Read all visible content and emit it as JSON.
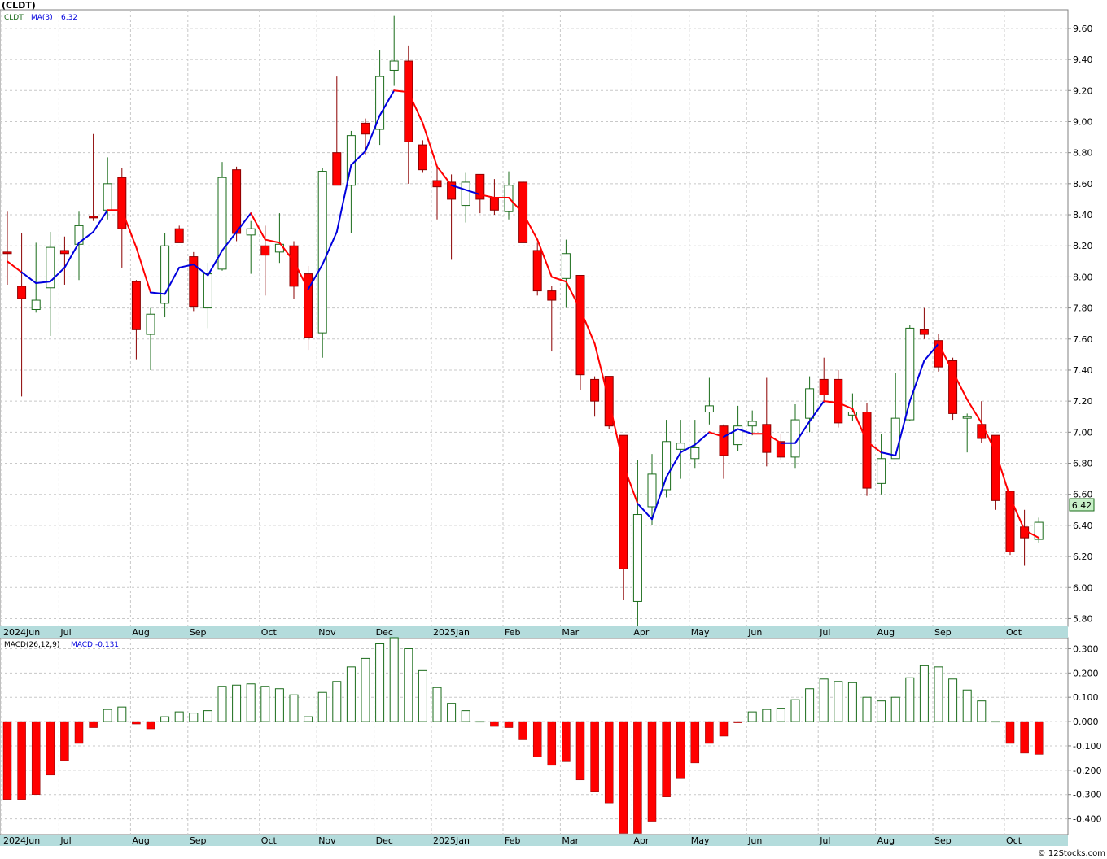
{
  "header": {
    "title": "(CLDT)"
  },
  "legend_main": {
    "symbol": "CLDT",
    "ma_label": "MA(3)",
    "ma_value": "6.32"
  },
  "legend_macd": {
    "label": "MACD(26,12,9)",
    "value_label": "MACD:-0.131"
  },
  "footer": {
    "copyright": "© 12Stocks.com"
  },
  "last_price_label": "6.42",
  "colors": {
    "up_candle": "#1a6b1a",
    "down_candle": "#ff0000",
    "ma_up": "#0000dd",
    "ma_down": "#ff0000",
    "axis_band": "#b4dcdc",
    "price_tag": "#c8f0c8"
  },
  "chart_data": [
    {
      "type": "candlestick",
      "title": "(CLDT)",
      "ylim": [
        5.75,
        9.72
      ],
      "yticks": [
        "9.60",
        "9.40",
        "9.20",
        "9.00",
        "8.80",
        "8.60",
        "8.40",
        "8.20",
        "8.00",
        "7.80",
        "7.60",
        "7.40",
        "7.20",
        "7.00",
        "6.80",
        "6.60",
        "6.40",
        "6.20",
        "6.00",
        "5.80"
      ],
      "x_tick_labels": [
        "2024Jun",
        "Jul",
        "Aug",
        "Sep",
        "Oct",
        "Nov",
        "Dec",
        "2025Jan",
        "Feb",
        "Mar",
        "Apr",
        "May",
        "Jun",
        "Jul",
        "Aug",
        "Sep",
        "Oct"
      ],
      "x_tick_index": [
        0,
        4,
        9,
        13,
        18,
        22,
        26,
        30,
        35,
        39,
        44,
        48,
        52,
        57,
        61,
        65,
        70
      ],
      "grid": true,
      "ohlc": [
        [
          8.16,
          8.42,
          7.95,
          8.15
        ],
        [
          7.94,
          8.28,
          7.23,
          7.86
        ],
        [
          7.79,
          8.22,
          7.77,
          7.85
        ],
        [
          7.93,
          8.29,
          7.62,
          8.19
        ],
        [
          8.17,
          8.26,
          7.95,
          8.15
        ],
        [
          8.21,
          8.42,
          7.98,
          8.33
        ],
        [
          8.39,
          8.92,
          8.36,
          8.38
        ],
        [
          8.43,
          8.77,
          8.37,
          8.6
        ],
        [
          8.64,
          8.7,
          8.06,
          8.31
        ],
        [
          7.97,
          7.98,
          7.47,
          7.66
        ],
        [
          7.63,
          7.8,
          7.4,
          7.76
        ],
        [
          7.83,
          8.28,
          7.74,
          8.2
        ],
        [
          8.31,
          8.33,
          8.22,
          8.22
        ],
        [
          8.13,
          8.16,
          7.78,
          7.81
        ],
        [
          7.8,
          8.09,
          7.67,
          8.02
        ],
        [
          8.05,
          8.74,
          8.04,
          8.64
        ],
        [
          8.69,
          8.71,
          8.23,
          8.28
        ],
        [
          8.27,
          8.36,
          8.02,
          8.31
        ],
        [
          8.2,
          8.33,
          7.88,
          8.14
        ],
        [
          8.16,
          8.41,
          8.09,
          8.21
        ],
        [
          8.2,
          8.23,
          7.86,
          7.94
        ],
        [
          8.02,
          8.07,
          7.53,
          7.61
        ],
        [
          7.64,
          8.7,
          7.48,
          8.68
        ],
        [
          8.8,
          9.29,
          8.59,
          8.59
        ],
        [
          8.59,
          8.94,
          8.28,
          8.91
        ],
        [
          8.99,
          9.02,
          8.79,
          8.92
        ],
        [
          8.95,
          9.46,
          8.85,
          9.29
        ],
        [
          9.33,
          9.68,
          9.23,
          9.39
        ],
        [
          9.39,
          9.49,
          8.6,
          8.87
        ],
        [
          8.85,
          8.88,
          8.67,
          8.69
        ],
        [
          8.62,
          8.7,
          8.37,
          8.58
        ],
        [
          8.61,
          8.66,
          8.11,
          8.5
        ],
        [
          8.46,
          8.67,
          8.35,
          8.61
        ],
        [
          8.66,
          8.66,
          8.41,
          8.5
        ],
        [
          8.51,
          8.63,
          8.4,
          8.43
        ],
        [
          8.42,
          8.68,
          8.37,
          8.59
        ],
        [
          8.61,
          8.62,
          8.22,
          8.22
        ],
        [
          8.17,
          8.22,
          7.88,
          7.91
        ],
        [
          7.91,
          7.94,
          7.52,
          7.85
        ],
        [
          7.99,
          8.24,
          7.8,
          8.15
        ],
        [
          8.01,
          8.01,
          7.27,
          7.37
        ],
        [
          7.34,
          7.36,
          7.1,
          7.2
        ],
        [
          7.36,
          7.36,
          7.02,
          7.04
        ],
        [
          6.98,
          6.98,
          5.92,
          6.12
        ],
        [
          5.91,
          6.82,
          5.75,
          6.47
        ],
        [
          6.52,
          6.86,
          6.4,
          6.73
        ],
        [
          6.63,
          7.08,
          6.58,
          6.94
        ],
        [
          6.89,
          7.08,
          6.7,
          6.93
        ],
        [
          6.83,
          7.08,
          6.77,
          6.9
        ],
        [
          7.13,
          7.35,
          7.05,
          7.17
        ],
        [
          7.04,
          7.05,
          6.7,
          6.85
        ],
        [
          6.92,
          7.17,
          6.88,
          7.04
        ],
        [
          7.04,
          7.14,
          6.98,
          7.07
        ],
        [
          7.05,
          7.35,
          6.78,
          6.87
        ],
        [
          6.94,
          6.99,
          6.82,
          6.84
        ],
        [
          6.84,
          7.18,
          6.77,
          7.08
        ],
        [
          7.09,
          7.36,
          7.0,
          7.28
        ],
        [
          7.34,
          7.48,
          7.19,
          7.24
        ],
        [
          7.34,
          7.4,
          7.03,
          7.06
        ],
        [
          7.11,
          7.25,
          7.07,
          7.13
        ],
        [
          7.13,
          7.19,
          6.59,
          6.64
        ],
        [
          6.67,
          6.99,
          6.6,
          6.83
        ],
        [
          6.83,
          7.38,
          6.83,
          7.09
        ],
        [
          7.08,
          7.69,
          7.07,
          7.67
        ],
        [
          7.66,
          7.8,
          7.6,
          7.63
        ],
        [
          7.59,
          7.63,
          7.39,
          7.42
        ],
        [
          7.46,
          7.48,
          7.08,
          7.12
        ],
        [
          7.09,
          7.12,
          6.87,
          7.1
        ],
        [
          7.05,
          7.2,
          6.93,
          6.96
        ],
        [
          6.98,
          6.98,
          6.5,
          6.56
        ],
        [
          6.62,
          6.62,
          6.21,
          6.23
        ],
        [
          6.39,
          6.5,
          6.14,
          6.32
        ],
        [
          6.31,
          6.45,
          6.29,
          6.42
        ]
      ],
      "ma3": [
        8.1,
        8.03,
        7.96,
        7.97,
        8.06,
        8.22,
        8.29,
        8.43,
        8.43,
        8.19,
        7.9,
        7.89,
        8.06,
        8.08,
        8.01,
        8.17,
        8.29,
        8.41,
        8.24,
        8.22,
        8.1,
        7.92,
        8.08,
        8.29,
        8.72,
        8.81,
        9.04,
        9.2,
        9.19,
        8.99,
        8.71,
        8.59,
        8.56,
        8.53,
        8.51,
        8.51,
        8.41,
        8.24,
        8.0,
        7.97,
        7.79,
        7.57,
        7.2,
        6.79,
        6.54,
        6.44,
        6.71,
        6.87,
        6.92,
        7.0,
        6.97,
        7.02,
        6.99,
        6.99,
        6.93,
        6.93,
        7.07,
        7.2,
        7.19,
        7.15,
        6.94,
        6.87,
        6.85,
        7.2,
        7.46,
        7.57,
        7.39,
        7.21,
        7.06,
        6.87,
        6.58,
        6.37,
        6.32
      ],
      "ma_color_flag": [
        0,
        0,
        1,
        1,
        1,
        1,
        1,
        1,
        0,
        0,
        0,
        1,
        1,
        1,
        1,
        1,
        1,
        1,
        0,
        0,
        0,
        0,
        1,
        1,
        1,
        1,
        1,
        1,
        0,
        0,
        0,
        0,
        1,
        1,
        0,
        0,
        0,
        0,
        0,
        0,
        0,
        0,
        0,
        0,
        0,
        1,
        1,
        1,
        1,
        1,
        0,
        1,
        1,
        0,
        0,
        1,
        1,
        1,
        0,
        0,
        0,
        0,
        1,
        1,
        1,
        1,
        0,
        0,
        0,
        0,
        0,
        0,
        0
      ]
    },
    {
      "type": "bar",
      "title": "MACD(26,12,9)",
      "ylim": [
        -0.465,
        0.345
      ],
      "yticks": [
        "0.300",
        "0.200",
        "0.100",
        "0.000",
        "-0.100",
        "-0.200",
        "-0.300",
        "-0.400"
      ],
      "values": [
        -0.32,
        -0.32,
        -0.3,
        -0.22,
        -0.16,
        -0.09,
        -0.025,
        0.05,
        0.06,
        -0.01,
        -0.03,
        0.02,
        0.04,
        0.035,
        0.045,
        0.145,
        0.15,
        0.155,
        0.145,
        0.135,
        0.11,
        0.02,
        0.12,
        0.165,
        0.225,
        0.26,
        0.32,
        0.345,
        0.3,
        0.21,
        0.14,
        0.075,
        0.045,
        0.0,
        -0.02,
        -0.025,
        -0.075,
        -0.145,
        -0.18,
        -0.165,
        -0.24,
        -0.29,
        -0.335,
        -0.46,
        -0.46,
        -0.41,
        -0.31,
        -0.235,
        -0.17,
        -0.09,
        -0.06,
        -0.005,
        0.04,
        0.05,
        0.055,
        0.09,
        0.135,
        0.175,
        0.165,
        0.16,
        0.1,
        0.085,
        0.1,
        0.18,
        0.23,
        0.225,
        0.175,
        0.13,
        0.085,
        0.0,
        -0.09,
        -0.13,
        -0.135
      ]
    }
  ]
}
